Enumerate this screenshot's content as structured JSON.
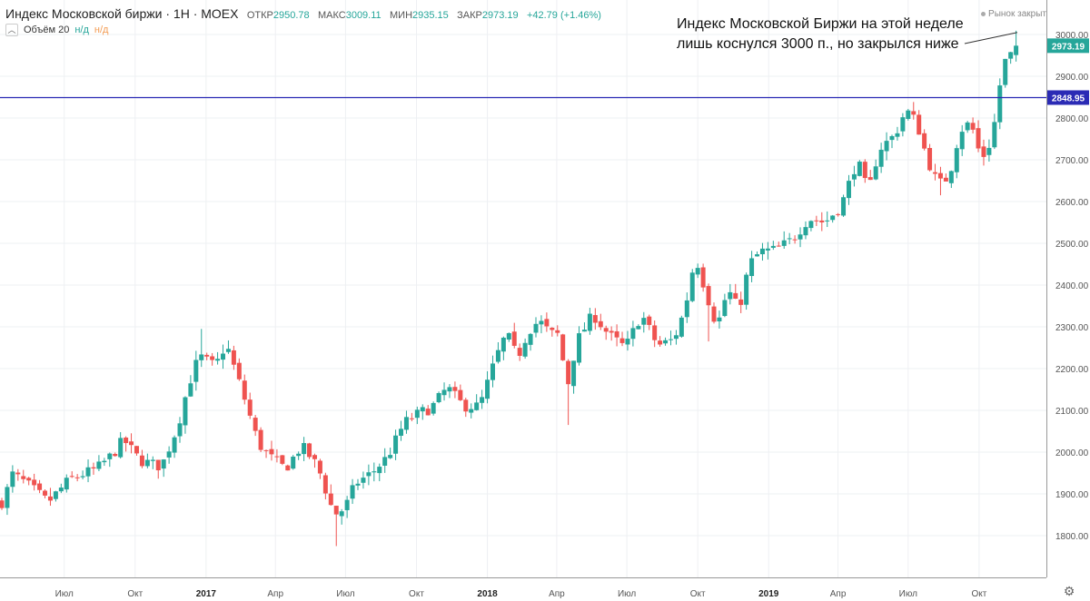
{
  "header": {
    "title": "Индекс Московской биржи · 1Н · MOEX",
    "open_label": "ОТКР",
    "open_value": "2950.78",
    "high_label": "МАКС",
    "high_value": "3009.11",
    "low_label": "МИН",
    "low_value": "2935.15",
    "close_label": "ЗАКР",
    "close_value": "2973.19",
    "change": "+42.79 (+1.46%)",
    "volume_label": "Объём 20",
    "volume_na1": "н/д",
    "volume_na2": "н/д",
    "collapse_icon": "chevron-up-icon"
  },
  "market_status": "Рынок закрыт",
  "annotation": {
    "line1": "Индекс Московской Биржи на этой неделе",
    "line2": "лишь коснулся 3000 п., но закрылся ниже"
  },
  "price_badge": "2973.19",
  "level_badge": "2848.95",
  "colors": {
    "up": "#26a69a",
    "down": "#ef5350",
    "level_line": "#2b2bb5",
    "grid": "#eef0f3",
    "axis_text": "#555555"
  },
  "chart_data": {
    "type": "candlestick",
    "title": "Индекс Московской биржи",
    "interval": "1W",
    "ylim": [
      1700,
      3050
    ],
    "y_ticks": [
      1800,
      1900,
      2000,
      2100,
      2200,
      2300,
      2400,
      2500,
      2600,
      2700,
      2800,
      2900,
      3000
    ],
    "x_range": [
      "2016-04-11",
      "2019-11-22"
    ],
    "x_ticks": [
      {
        "date": "2016-07-01",
        "label": "Июл",
        "bold": false
      },
      {
        "date": "2016-10-01",
        "label": "Окт",
        "bold": false
      },
      {
        "date": "2017-01-01",
        "label": "2017",
        "bold": true
      },
      {
        "date": "2017-04-01",
        "label": "Апр",
        "bold": false
      },
      {
        "date": "2017-07-01",
        "label": "Июл",
        "bold": false
      },
      {
        "date": "2017-10-01",
        "label": "Окт",
        "bold": false
      },
      {
        "date": "2018-01-01",
        "label": "2018",
        "bold": true
      },
      {
        "date": "2018-04-01",
        "label": "Апр",
        "bold": false
      },
      {
        "date": "2018-07-01",
        "label": "Июл",
        "bold": false
      },
      {
        "date": "2018-10-01",
        "label": "Окт",
        "bold": false
      },
      {
        "date": "2019-01-01",
        "label": "2019",
        "bold": true
      },
      {
        "date": "2019-04-01",
        "label": "Апр",
        "bold": false
      },
      {
        "date": "2019-07-01",
        "label": "Июл",
        "bold": false
      },
      {
        "date": "2019-10-01",
        "label": "Окт",
        "bold": false
      }
    ],
    "horizontal_level": 2848.95,
    "last_close": 2973.19,
    "legend": "none",
    "grid": true,
    "anchor_closes": [
      [
        "2016-04-15",
        1880
      ],
      [
        "2016-04-22",
        1950
      ],
      [
        "2016-05-13",
        1925
      ],
      [
        "2016-06-10",
        1880
      ],
      [
        "2016-07-08",
        1935
      ],
      [
        "2016-08-12",
        1960
      ],
      [
        "2016-09-02",
        1995
      ],
      [
        "2016-09-16",
        2030
      ],
      [
        "2016-10-07",
        1980
      ],
      [
        "2016-11-04",
        1965
      ],
      [
        "2016-11-25",
        2060
      ],
      [
        "2016-12-09",
        2160
      ],
      [
        "2016-12-23",
        2230
      ],
      [
        "2017-01-13",
        2205
      ],
      [
        "2017-01-27",
        2260
      ],
      [
        "2017-02-17",
        2145
      ],
      [
        "2017-03-10",
        2020
      ],
      [
        "2017-03-24",
        1990
      ],
      [
        "2017-04-14",
        1960
      ],
      [
        "2017-05-05",
        2015
      ],
      [
        "2017-05-26",
        1965
      ],
      [
        "2017-06-16",
        1850
      ],
      [
        "2017-06-30",
        1865
      ],
      [
        "2017-07-14",
        1925
      ],
      [
        "2017-08-04",
        1950
      ],
      [
        "2017-08-25",
        1990
      ],
      [
        "2017-09-15",
        2070
      ],
      [
        "2017-10-06",
        2095
      ],
      [
        "2017-10-20",
        2105
      ],
      [
        "2017-11-10",
        2155
      ],
      [
        "2017-12-01",
        2110
      ],
      [
        "2017-12-22",
        2110
      ],
      [
        "2018-01-12",
        2225
      ],
      [
        "2018-01-26",
        2285
      ],
      [
        "2018-02-09",
        2225
      ],
      [
        "2018-02-23",
        2290
      ],
      [
        "2018-03-09",
        2315
      ],
      [
        "2018-03-23",
        2285
      ],
      [
        "2018-04-06",
        2280
      ],
      [
        "2018-04-13",
        2140
      ],
      [
        "2018-04-27",
        2265
      ],
      [
        "2018-05-18",
        2330
      ],
      [
        "2018-06-08",
        2280
      ],
      [
        "2018-06-29",
        2250
      ],
      [
        "2018-07-20",
        2330
      ],
      [
        "2018-08-10",
        2255
      ],
      [
        "2018-08-31",
        2270
      ],
      [
        "2018-09-14",
        2340
      ],
      [
        "2018-09-28",
        2470
      ],
      [
        "2018-10-12",
        2380
      ],
      [
        "2018-10-26",
        2300
      ],
      [
        "2018-11-09",
        2390
      ],
      [
        "2018-11-23",
        2340
      ],
      [
        "2018-12-07",
        2450
      ],
      [
        "2018-12-21",
        2480
      ],
      [
        "2019-01-11",
        2485
      ],
      [
        "2019-02-01",
        2510
      ],
      [
        "2019-02-22",
        2560
      ],
      [
        "2019-03-15",
        2550
      ],
      [
        "2019-04-05",
        2590
      ],
      [
        "2019-04-26",
        2700
      ],
      [
        "2019-05-10",
        2620
      ],
      [
        "2019-05-24",
        2725
      ],
      [
        "2019-06-14",
        2760
      ],
      [
        "2019-06-28",
        2820
      ],
      [
        "2019-07-12",
        2790
      ],
      [
        "2019-07-26",
        2700
      ],
      [
        "2019-08-09",
        2640
      ],
      [
        "2019-08-23",
        2660
      ],
      [
        "2019-09-06",
        2770
      ],
      [
        "2019-09-20",
        2790
      ],
      [
        "2019-10-04",
        2700
      ],
      [
        "2019-10-18",
        2750
      ],
      [
        "2019-11-01",
        2930
      ],
      [
        "2019-11-22",
        2973.19
      ]
    ],
    "extreme_points": [
      {
        "date": "2016-12-23",
        "high": 2295
      },
      {
        "date": "2017-06-16",
        "low": 1775
      },
      {
        "date": "2018-04-13",
        "low": 2065
      },
      {
        "date": "2018-10-12",
        "low": 2265
      },
      {
        "date": "2019-08-09",
        "low": 2615
      },
      {
        "date": "2019-11-22",
        "high": 3009.11
      }
    ],
    "last_candle": {
      "open": 2950.78,
      "high": 3009.11,
      "low": 2935.15,
      "close": 2973.19
    }
  }
}
